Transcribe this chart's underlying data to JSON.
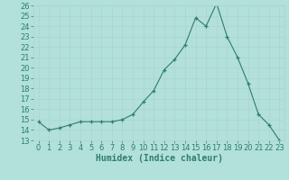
{
  "x": [
    0,
    1,
    2,
    3,
    4,
    5,
    6,
    7,
    8,
    9,
    10,
    11,
    12,
    13,
    14,
    15,
    16,
    17,
    18,
    19,
    20,
    21,
    22,
    23
  ],
  "y": [
    14.8,
    14.0,
    14.2,
    14.5,
    14.8,
    14.8,
    14.8,
    14.8,
    15.0,
    15.5,
    16.7,
    17.8,
    19.8,
    20.8,
    22.2,
    24.8,
    24.0,
    26.2,
    23.0,
    21.0,
    18.5,
    15.5,
    14.5,
    13.0
  ],
  "xlabel": "Humidex (Indice chaleur)",
  "ylim": [
    13,
    26
  ],
  "xlim": [
    -0.5,
    23.5
  ],
  "yticks": [
    13,
    14,
    15,
    16,
    17,
    18,
    19,
    20,
    21,
    22,
    23,
    24,
    25,
    26
  ],
  "xticks": [
    0,
    1,
    2,
    3,
    4,
    5,
    6,
    7,
    8,
    9,
    10,
    11,
    12,
    13,
    14,
    15,
    16,
    17,
    18,
    19,
    20,
    21,
    22,
    23
  ],
  "line_color": "#2e7d6e",
  "marker": "+",
  "bg_color": "#b2e0da",
  "grid_color": "#afd4ce",
  "label_fontsize": 7,
  "tick_fontsize": 6
}
